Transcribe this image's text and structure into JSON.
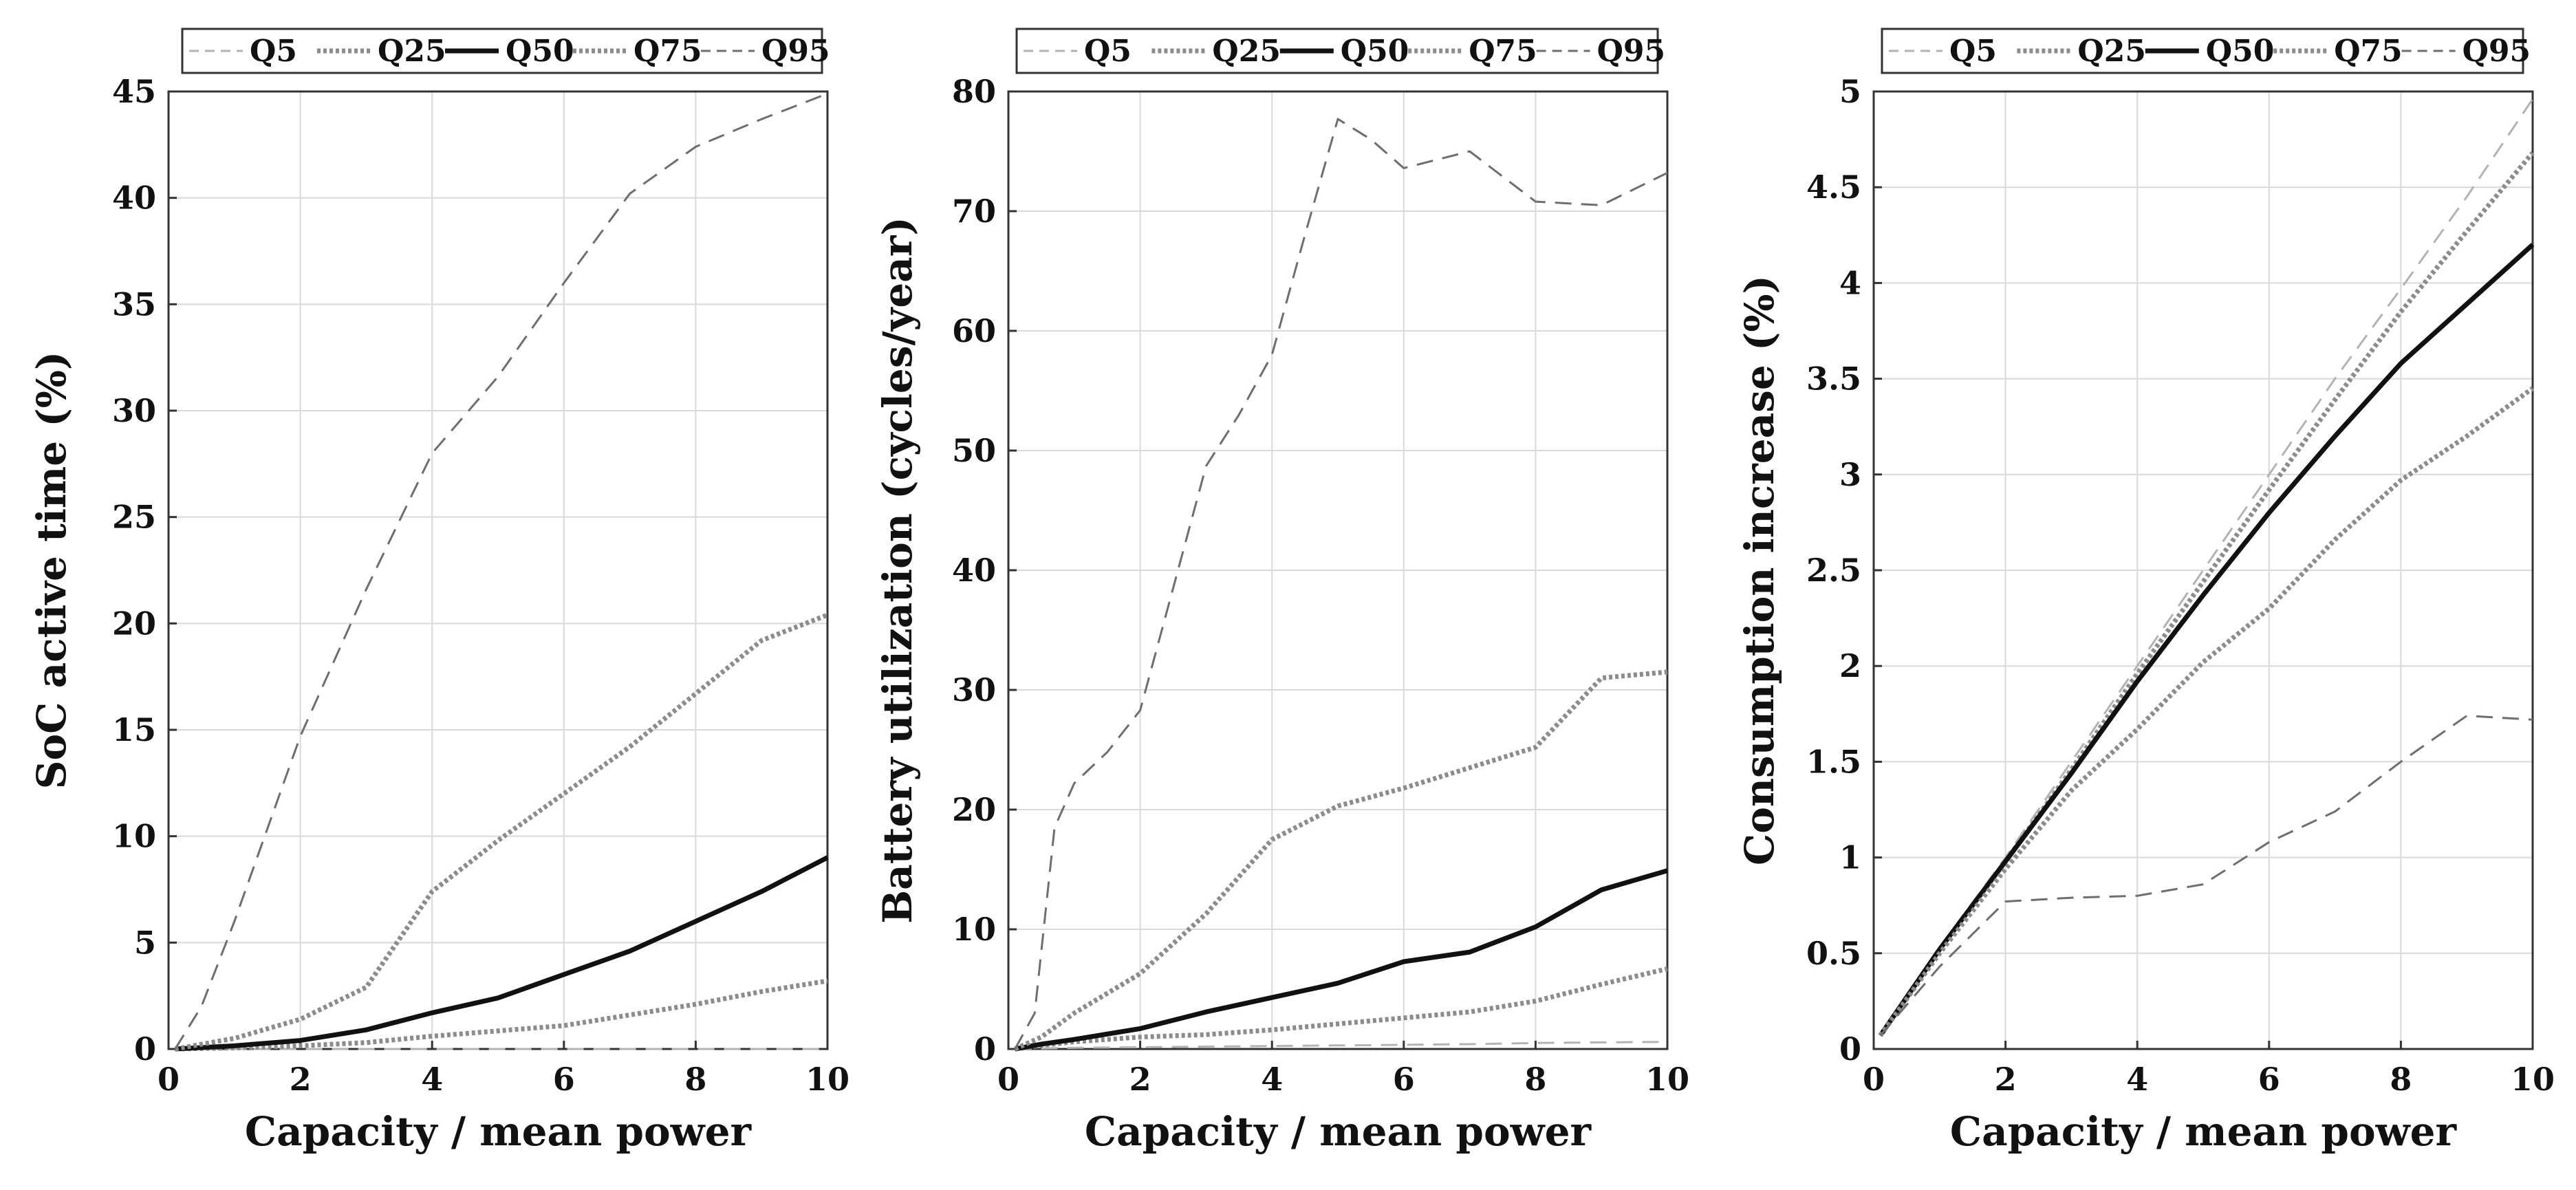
{
  "style": {
    "background": "#ffffff",
    "grid_color": "#d9d9d9",
    "frame_color": "#333333",
    "series_styles": {
      "Q5": {
        "color": "#b3b3b3",
        "dash": "24,14",
        "width": 3
      },
      "Q25": {
        "color": "#8c8c8c",
        "dash": "5,4",
        "width": 7
      },
      "Q50": {
        "color": "#111111",
        "dash": "",
        "width": 7
      },
      "Q75": {
        "color": "#8c8c8c",
        "dash": "5,4",
        "width": 7
      },
      "Q95": {
        "color": "#6e6e6e",
        "dash": "24,14",
        "width": 3
      }
    }
  },
  "chart_data": [
    {
      "type": "line",
      "xlabel": "Capacity / mean power",
      "ylabel": "SoC active time (%)",
      "xlim": [
        0,
        10
      ],
      "ylim": [
        0,
        45
      ],
      "xticks": [
        "0",
        "2",
        "4",
        "6",
        "8",
        "10"
      ],
      "yticks": [
        "0",
        "5",
        "10",
        "15",
        "20",
        "25",
        "30",
        "35",
        "40",
        "45"
      ],
      "grid": true,
      "legend": [
        "Q5",
        "Q25",
        "Q50",
        "Q75",
        "Q95"
      ],
      "series": [
        {
          "name": "Q5",
          "x": [
            0.1,
            1,
            2,
            3,
            4,
            5,
            6,
            7,
            8,
            9,
            10
          ],
          "y": [
            0,
            0,
            0,
            0,
            0,
            0,
            0,
            0,
            0,
            0,
            0
          ]
        },
        {
          "name": "Q25",
          "x": [
            0.1,
            1,
            2,
            3,
            4,
            5,
            6,
            7,
            8,
            9,
            10
          ],
          "y": [
            0,
            0.05,
            0.15,
            0.3,
            0.6,
            0.85,
            1.1,
            1.6,
            2.1,
            2.7,
            3.2
          ]
        },
        {
          "name": "Q50",
          "x": [
            0.1,
            1,
            2,
            3,
            4,
            5,
            6,
            7,
            8,
            9,
            10
          ],
          "y": [
            0,
            0.15,
            0.4,
            0.9,
            1.7,
            2.4,
            3.5,
            4.6,
            6.0,
            7.4,
            9.0
          ]
        },
        {
          "name": "Q75",
          "x": [
            0.1,
            1,
            2,
            3,
            4,
            5,
            6,
            7,
            8,
            9,
            10
          ],
          "y": [
            0,
            0.5,
            1.4,
            2.9,
            7.4,
            9.8,
            12.0,
            14.2,
            16.7,
            19.2,
            20.4
          ]
        },
        {
          "name": "Q95",
          "x": [
            0.1,
            0.5,
            1,
            2,
            3,
            4,
            5,
            6,
            7,
            8,
            9,
            10
          ],
          "y": [
            0,
            2,
            6,
            14.7,
            21.6,
            28.0,
            31.6,
            36.0,
            40.2,
            42.4,
            43.7,
            44.9
          ]
        }
      ]
    },
    {
      "type": "line",
      "xlabel": "Capacity / mean power",
      "ylabel": "Battery utilization (cycles/year)",
      "xlim": [
        0,
        10
      ],
      "ylim": [
        0,
        80
      ],
      "xticks": [
        "0",
        "2",
        "4",
        "6",
        "8",
        "10"
      ],
      "yticks": [
        "0",
        "10",
        "20",
        "30",
        "40",
        "50",
        "60",
        "70",
        "80"
      ],
      "grid": true,
      "legend": [
        "Q5",
        "Q25",
        "Q50",
        "Q75",
        "Q95"
      ],
      "series": [
        {
          "name": "Q5",
          "x": [
            0.1,
            1,
            2,
            3,
            4,
            5,
            6,
            7,
            8,
            9,
            10
          ],
          "y": [
            0,
            0.1,
            0.15,
            0.2,
            0.25,
            0.3,
            0.35,
            0.4,
            0.5,
            0.55,
            0.6
          ]
        },
        {
          "name": "Q25",
          "x": [
            0.1,
            0.5,
            1,
            2,
            3,
            4,
            5,
            6,
            7,
            8,
            9,
            10
          ],
          "y": [
            0,
            0.3,
            0.6,
            1.0,
            1.2,
            1.6,
            2.1,
            2.6,
            3.1,
            4.0,
            5.4,
            6.7
          ]
        },
        {
          "name": "Q50",
          "x": [
            0.1,
            0.5,
            1,
            2,
            3,
            4,
            5,
            6,
            7,
            8,
            9,
            10
          ],
          "y": [
            0,
            0.4,
            0.8,
            1.7,
            3.1,
            4.3,
            5.5,
            7.3,
            8.1,
            10.2,
            13.3,
            14.9
          ]
        },
        {
          "name": "Q75",
          "x": [
            0.1,
            0.5,
            1,
            2,
            3,
            4,
            5,
            6,
            7,
            8,
            9,
            10
          ],
          "y": [
            0,
            1.0,
            3.0,
            6.3,
            11.3,
            17.5,
            20.3,
            21.8,
            23.5,
            25.2,
            31.0,
            31.5
          ]
        },
        {
          "name": "Q95",
          "x": [
            0.1,
            0.4,
            0.7,
            1,
            1.5,
            2,
            2.5,
            3,
            3.5,
            4,
            4.5,
            5,
            5.5,
            6,
            7,
            8,
            9,
            10
          ],
          "y": [
            0,
            3,
            18.5,
            22.2,
            24.8,
            28.3,
            38.5,
            48.7,
            53.0,
            58.0,
            68.0,
            77.7,
            76.0,
            73.6,
            75.0,
            70.8,
            70.5,
            73.2
          ]
        }
      ]
    },
    {
      "type": "line",
      "xlabel": "Capacity / mean power",
      "ylabel": "Consumption increase (%)",
      "xlim": [
        0,
        10
      ],
      "ylim": [
        0,
        5
      ],
      "xticks": [
        "0",
        "2",
        "4",
        "6",
        "8",
        "10"
      ],
      "yticks": [
        "0",
        "0.5",
        "1",
        "1.5",
        "2",
        "2.5",
        "3",
        "3.5",
        "4",
        "4.5",
        "5"
      ],
      "grid": true,
      "legend": [
        "Q5",
        "Q25",
        "Q50",
        "Q75",
        "Q95"
      ],
      "series": [
        {
          "name": "Q5",
          "x": [
            0.1,
            1,
            2,
            3,
            4,
            5,
            6,
            7,
            8,
            9,
            10
          ],
          "y": [
            0.07,
            0.53,
            1.0,
            1.5,
            2.0,
            2.5,
            3.0,
            3.5,
            3.97,
            4.45,
            4.96
          ]
        },
        {
          "name": "Q25",
          "x": [
            0.1,
            1,
            2,
            3,
            4,
            5,
            6,
            7,
            8,
            9,
            10
          ],
          "y": [
            0.07,
            0.52,
            0.98,
            1.46,
            1.96,
            2.44,
            2.92,
            3.39,
            3.85,
            4.27,
            4.68
          ]
        },
        {
          "name": "Q50",
          "x": [
            0.1,
            1,
            2,
            3,
            4,
            5,
            6,
            7,
            8,
            9,
            10
          ],
          "y": [
            0.07,
            0.52,
            0.98,
            1.44,
            1.92,
            2.37,
            2.8,
            3.2,
            3.58,
            3.89,
            4.2
          ]
        },
        {
          "name": "Q75",
          "x": [
            0.1,
            1,
            2,
            3,
            4,
            5,
            6,
            7,
            8,
            9,
            10
          ],
          "y": [
            0.07,
            0.5,
            0.94,
            1.35,
            1.67,
            2.02,
            2.3,
            2.66,
            2.97,
            3.2,
            3.45
          ]
        },
        {
          "name": "Q95",
          "x": [
            0.1,
            1,
            2,
            3,
            4,
            5,
            6,
            7,
            8,
            9,
            10
          ],
          "y": [
            0.07,
            0.43,
            0.77,
            0.79,
            0.8,
            0.86,
            1.08,
            1.24,
            1.5,
            1.74,
            1.72
          ]
        }
      ]
    }
  ]
}
